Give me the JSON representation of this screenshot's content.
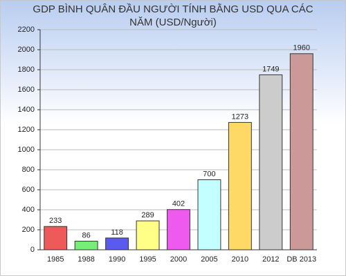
{
  "chart_data": {
    "type": "bar",
    "title": "GDP BÌNH QUÂN ĐẦU NGƯỜI TÍNH BẰNG USD QUA CÁC NĂM (USD/Người)",
    "categories": [
      "1985",
      "1988",
      "1990",
      "1995",
      "2000",
      "2005",
      "2010",
      "2012",
      "DB 2013"
    ],
    "values": [
      233,
      86,
      118,
      289,
      402,
      700,
      1273,
      1749,
      1960
    ],
    "colors": [
      "#ee5a5a",
      "#77ee77",
      "#5a5aee",
      "#ffff88",
      "#ee5aee",
      "#c4ffff",
      "#ffd966",
      "#cccccc",
      "#cc9999"
    ],
    "ylim": [
      0,
      2200
    ],
    "yticks": [
      0,
      200,
      400,
      600,
      800,
      1000,
      1200,
      1400,
      1600,
      1800,
      2000,
      2200
    ],
    "grid": true
  }
}
